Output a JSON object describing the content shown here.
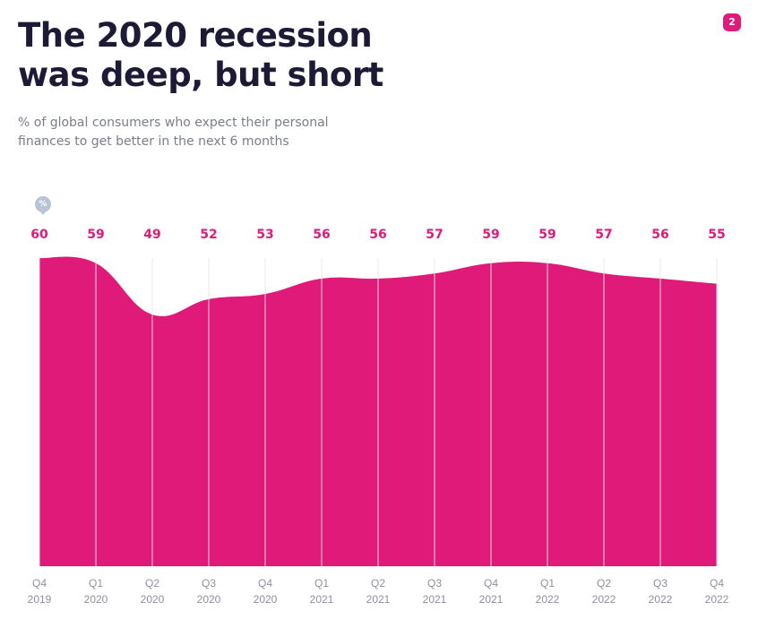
{
  "header": {
    "title_line1": "The 2020 recession",
    "title_line2": "was deep, but short",
    "subtitle_line1": "% of global consumers who expect their personal",
    "subtitle_line2": "finances to get better in the next 6 months",
    "page_badge": "2",
    "unit_symbol": "%"
  },
  "chart_data": {
    "type": "area",
    "title": "The 2020 recession was deep, but short",
    "subtitle": "% of global consumers who expect their personal finances to get better in the next 6 months",
    "ylabel": "%",
    "xlabel": "",
    "ylim": [
      0,
      60
    ],
    "grid": "vertical",
    "categories": [
      [
        "Q4",
        "2019"
      ],
      [
        "Q1",
        "2020"
      ],
      [
        "Q2",
        "2020"
      ],
      [
        "Q3",
        "2020"
      ],
      [
        "Q4",
        "2020"
      ],
      [
        "Q1",
        "2021"
      ],
      [
        "Q2",
        "2021"
      ],
      [
        "Q3",
        "2021"
      ],
      [
        "Q4",
        "2021"
      ],
      [
        "Q1",
        "2022"
      ],
      [
        "Q2",
        "2022"
      ],
      [
        "Q3",
        "2022"
      ],
      [
        "Q4",
        "2022"
      ]
    ],
    "values": [
      60,
      59,
      49,
      52,
      53,
      56,
      56,
      57,
      59,
      59,
      57,
      56,
      55
    ],
    "colors": {
      "fill": "#e01a79",
      "grid": "#e6e8ee"
    }
  }
}
